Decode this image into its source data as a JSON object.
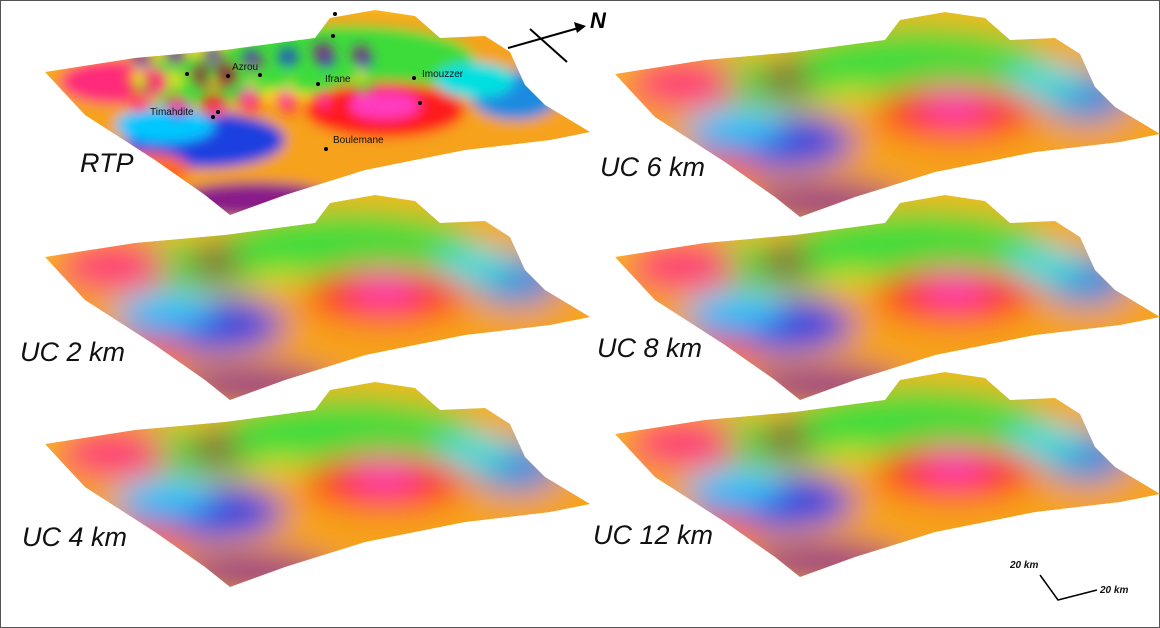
{
  "compass": {
    "north": "N"
  },
  "panels": [
    {
      "label": "RTP"
    },
    {
      "label": "UC 6 km"
    },
    {
      "label": "UC 2 km"
    },
    {
      "label": "UC 8 km"
    },
    {
      "label": "UC 4 km"
    },
    {
      "label": "UC 12 km"
    }
  ],
  "places": [
    {
      "name": "Azrou"
    },
    {
      "name": "Ifrane"
    },
    {
      "name": "Imouzzer"
    },
    {
      "name": "Timahdite"
    },
    {
      "name": "Boulemane"
    }
  ],
  "scale": {
    "vertical": "20 km",
    "horizontal": "20 km"
  }
}
